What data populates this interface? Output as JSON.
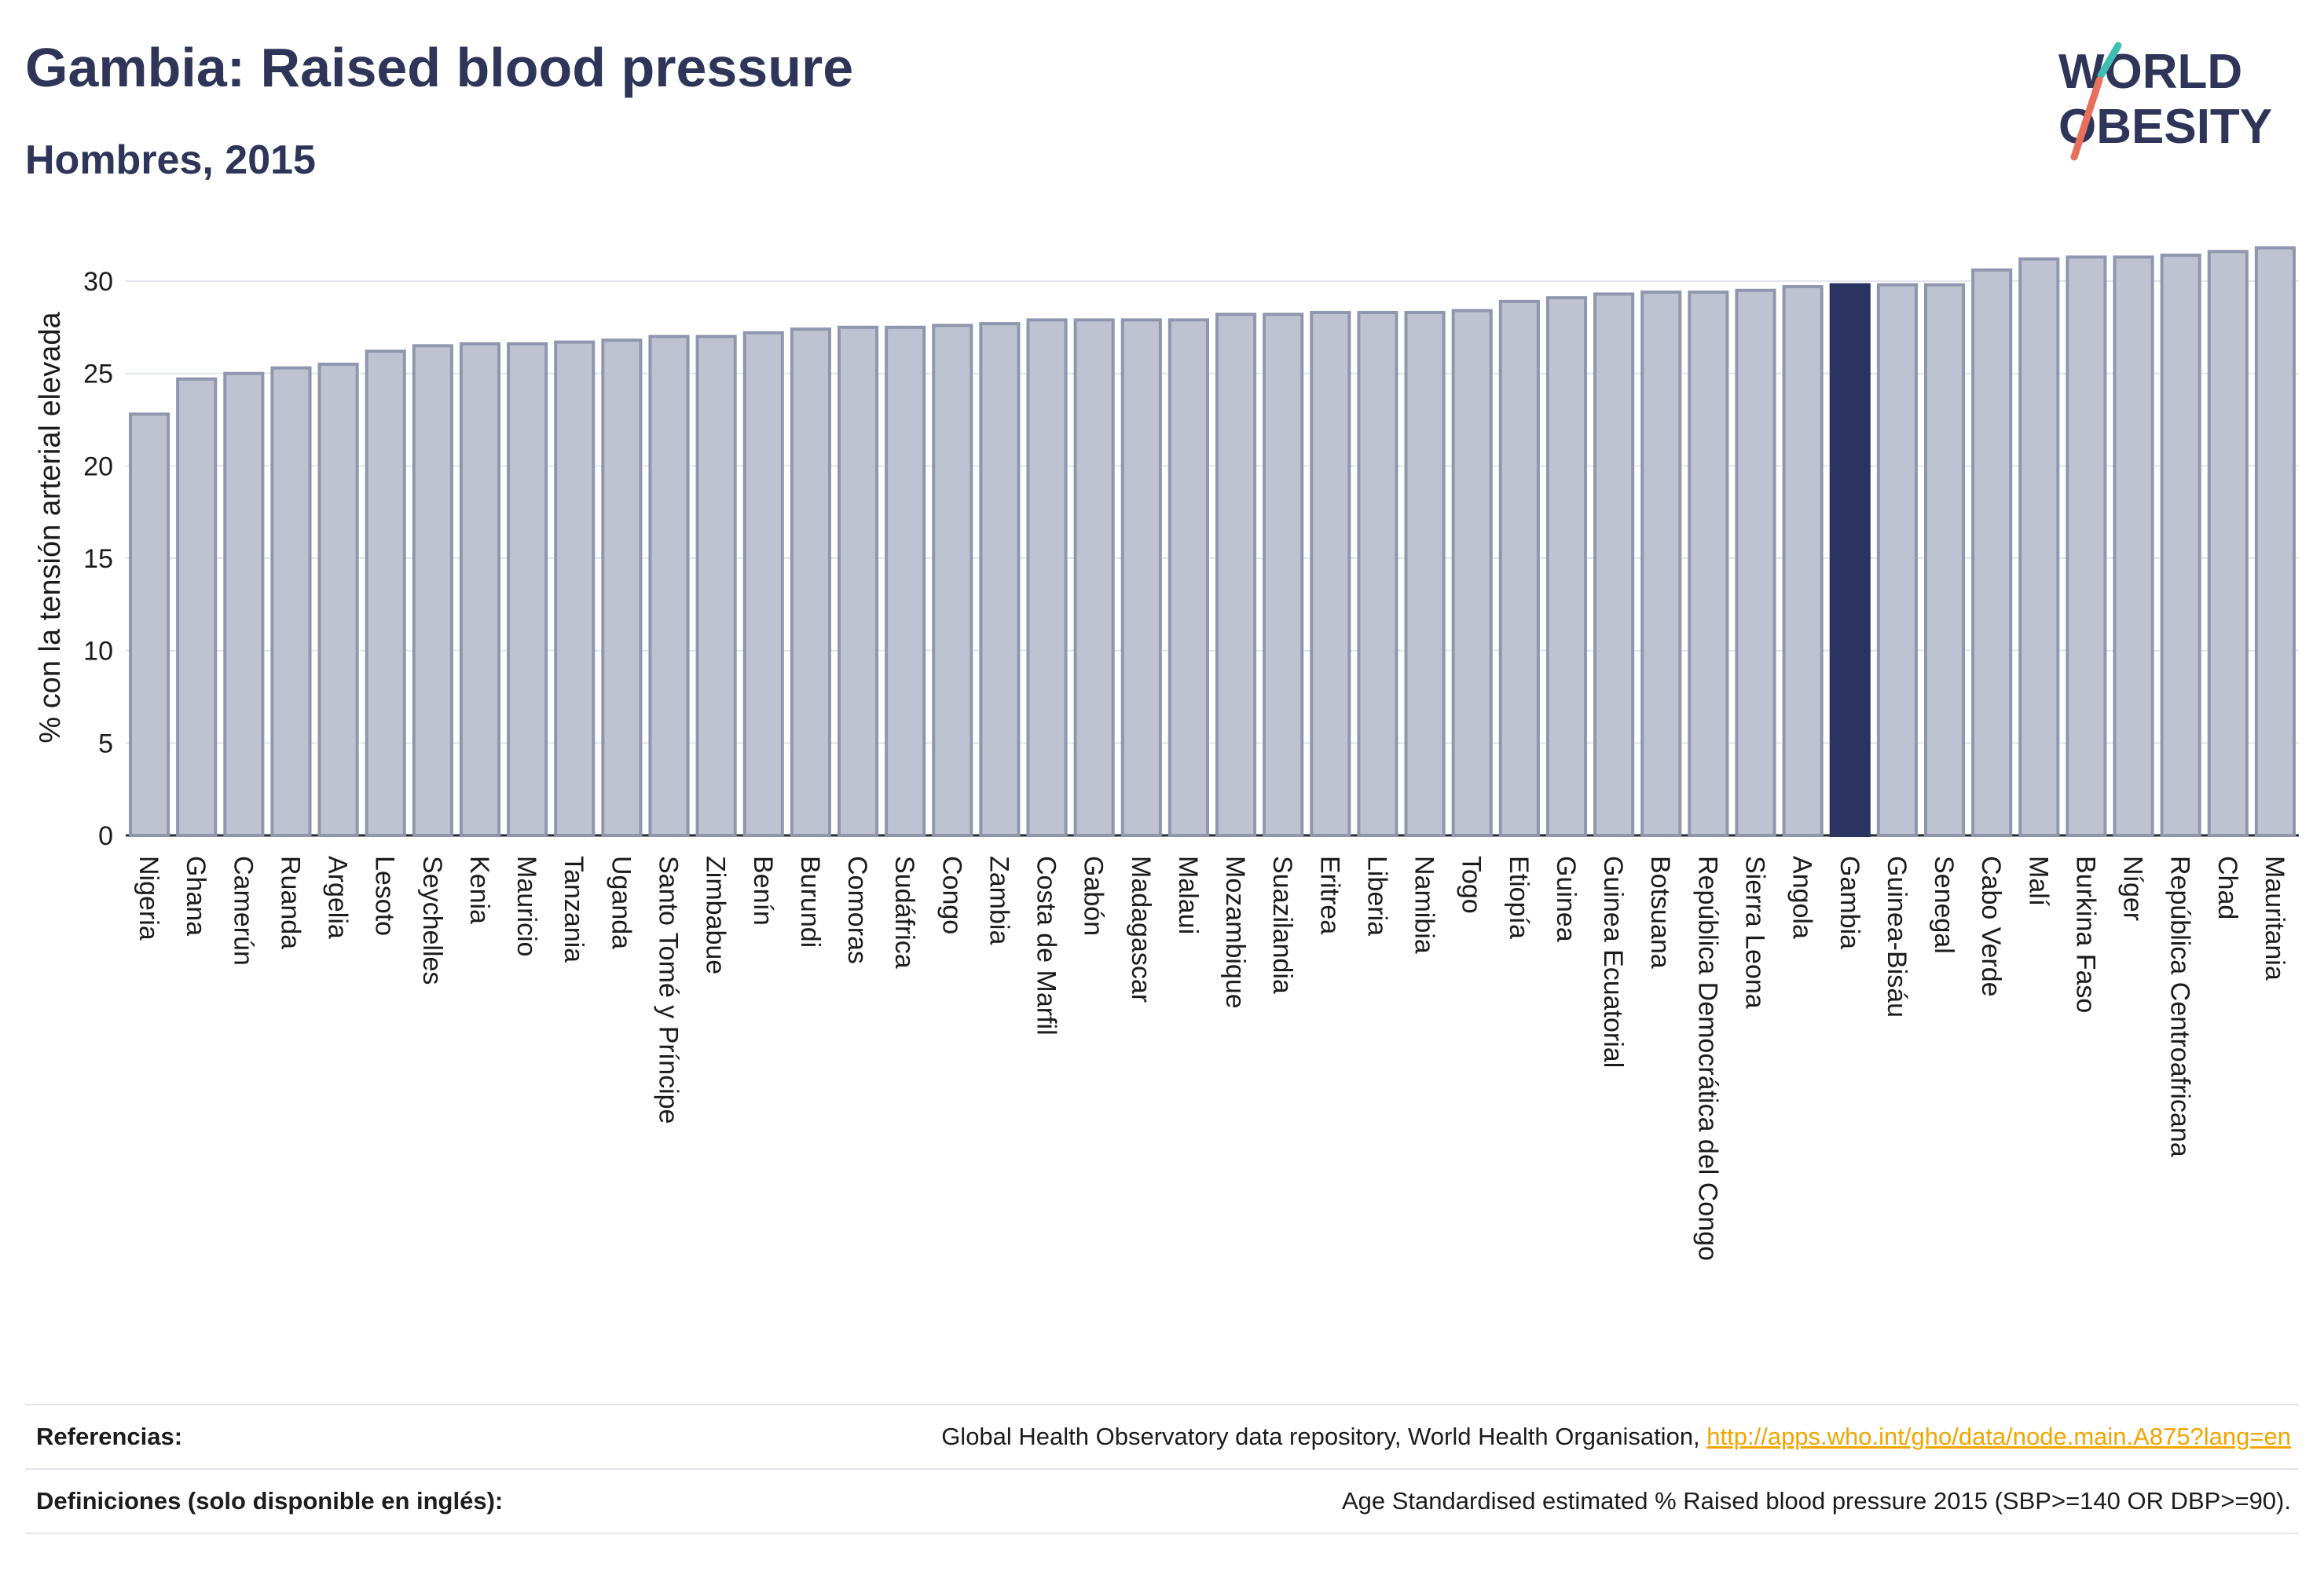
{
  "header": {
    "title": "Gambia: Raised blood pressure",
    "subtitle": "Hombres, 2015"
  },
  "logo": {
    "line1": "WORLD",
    "line2": "OBESITY",
    "colors": {
      "text": "#2e3558",
      "teal": "#3dbdb4",
      "coral": "#e8705a"
    }
  },
  "chart_data": {
    "type": "bar",
    "ylabel": "% con la tensión arterial elevada",
    "xlabel": "",
    "ylim": [
      0,
      32
    ],
    "yticks": [
      0,
      5,
      10,
      15,
      20,
      25,
      30
    ],
    "grid": true,
    "highlight": "Gambia",
    "colors": {
      "bar": "#bfc3d1",
      "bar_edge": "#9096ad",
      "highlight": "#2b3461"
    },
    "categories": [
      "Nigeria",
      "Ghana",
      "Camerún",
      "Ruanda",
      "Argelia",
      "Lesoto",
      "Seychelles",
      "Kenia",
      "Mauricio",
      "Tanzania",
      "Uganda",
      "Santo Tomé y Príncipe",
      "Zimbabue",
      "Benín",
      "Burundi",
      "Comoras",
      "Sudáfrica",
      "Congo",
      "Zambia",
      "Costa de Marfil",
      "Gabón",
      "Madagascar",
      "Malaui",
      "Mozambique",
      "Suazilandia",
      "Eritrea",
      "Liberia",
      "Namibia",
      "Togo",
      "Etiopía",
      "Guinea",
      "Guinea Ecuatorial",
      "Botsuana",
      "República Democrática del Congo",
      "Sierra Leona",
      "Angola",
      "Gambia",
      "Guinea-Bisáu",
      "Senegal",
      "Cabo Verde",
      "Malí",
      "Burkina Faso",
      "Níger",
      "República Centroafricana",
      "Chad",
      "Mauritania"
    ],
    "values": [
      22.8,
      24.7,
      25.0,
      25.3,
      25.5,
      26.2,
      26.5,
      26.6,
      26.6,
      26.7,
      26.8,
      27.0,
      27.0,
      27.2,
      27.4,
      27.5,
      27.5,
      27.6,
      27.7,
      27.9,
      27.9,
      27.9,
      27.9,
      28.2,
      28.2,
      28.3,
      28.3,
      28.3,
      28.4,
      28.9,
      29.1,
      29.3,
      29.4,
      29.4,
      29.5,
      29.7,
      29.8,
      29.8,
      29.8,
      30.6,
      31.2,
      31.3,
      31.3,
      31.4,
      31.6,
      31.8
    ]
  },
  "footer": {
    "references_label": "Referencias:",
    "references_text": "Global Health Observatory data repository, World Health Organisation, ",
    "references_link": "http://apps.who.int/gho/data/node.main.A875?lang=en",
    "definitions_label": "Definiciones (solo disponible en inglés):",
    "definitions_text": "Age Standardised estimated % Raised blood pressure 2015 (SBP>=140 OR DBP>=90)."
  }
}
